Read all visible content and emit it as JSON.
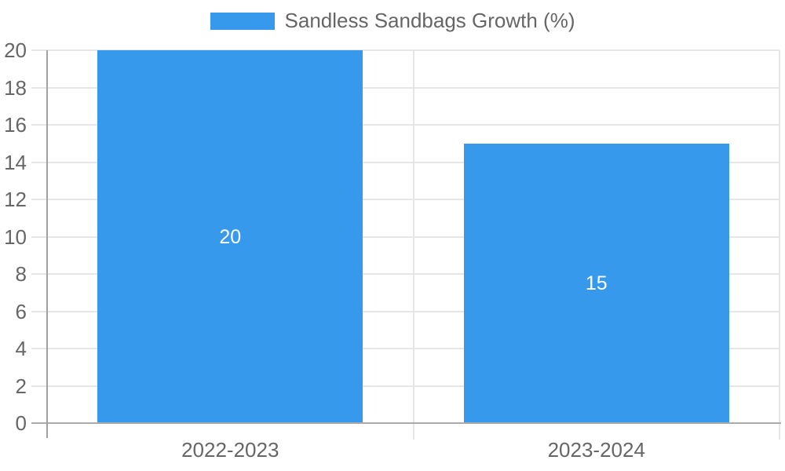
{
  "chart_data": {
    "type": "bar",
    "title": "",
    "legend_label": "Sandless Sandbags Growth (%)",
    "legend_position": "top-center",
    "categories": [
      "2022-2023",
      "2023-2024"
    ],
    "values": [
      20,
      15
    ],
    "data_labels": [
      "20",
      "15"
    ],
    "xlabel": "",
    "ylabel": "",
    "ylim": [
      0,
      20
    ],
    "ytick_step": 2,
    "ytick_labels": [
      "0",
      "2",
      "4",
      "6",
      "8",
      "10",
      "12",
      "14",
      "16",
      "18",
      "20"
    ],
    "grid": true,
    "colors": {
      "bar": "#3799EB",
      "grid": "#E6E6E6",
      "axis": "#ABABAB",
      "tick_text": "#666666",
      "legend_text": "#666666",
      "data_label_text": "#FFFFFF",
      "background": "#FFFFFF"
    }
  }
}
